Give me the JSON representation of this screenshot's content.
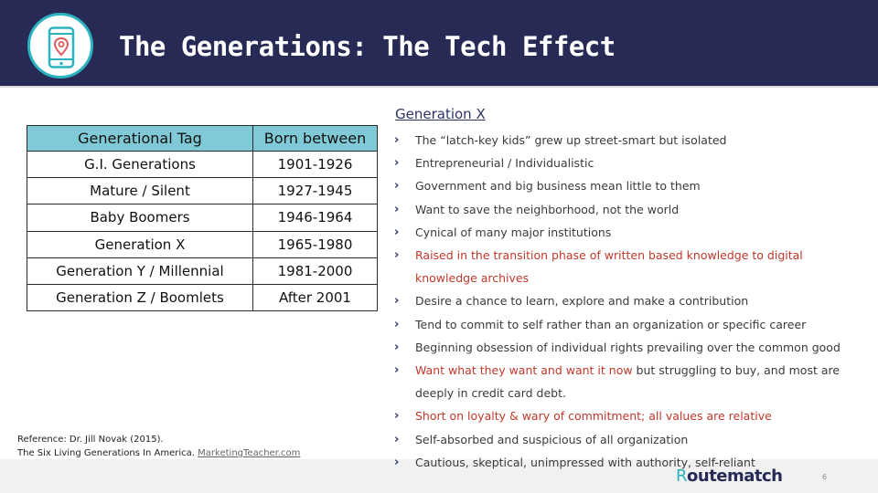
{
  "header": {
    "title": "The Generations: The Tech Effect",
    "accent_color": "#2bb3c0",
    "background_color": "#262a55",
    "logo_icon": "phone-location-pin-icon"
  },
  "table": {
    "header": {
      "tag": "Generational Tag",
      "born": "Born between"
    },
    "rows": [
      {
        "tag": "G.I. Generations",
        "born": "1901-1926"
      },
      {
        "tag": "Mature / Silent",
        "born": "1927-1945"
      },
      {
        "tag": "Baby Boomers",
        "born": "1946-1964"
      },
      {
        "tag": "Generation X",
        "born": "1965-1980"
      },
      {
        "tag": "Generation Y / Millennial",
        "born": "1981-2000"
      },
      {
        "tag": "Generation Z / Boomlets",
        "born": "After 2001"
      }
    ]
  },
  "genx": {
    "heading": "Generation X",
    "bullets": [
      {
        "text": "The “latch-key kids” grew up street-smart but isolated"
      },
      {
        "text": "Entrepreneurial / Individualistic"
      },
      {
        "text": "Government and big business mean little to them"
      },
      {
        "text": "Want to save the neighborhood, not the world"
      },
      {
        "text": "Cynical of many major institutions"
      },
      {
        "text": "Raised in the transition phase of written based knowledge to digital knowledge archives",
        "highlight": "red"
      },
      {
        "text": "Desire a chance to learn, explore and make a contribution"
      },
      {
        "text": "Tend to commit to self rather than an organization or specific career"
      },
      {
        "text": "Beginning obsession of individual rights prevailing over the common good"
      },
      {
        "text_red": "Want what they want and want it now",
        "text_rest": " but struggling to buy, and most are deeply in credit card debt."
      },
      {
        "text": "Short on loyalty & wary of commitment; all values are relative",
        "highlight": "red"
      },
      {
        "text": "Self-absorbed and suspicious of all organization"
      },
      {
        "text": "Cautious, skeptical, unimpressed with authority, self-reliant"
      }
    ]
  },
  "reference": {
    "line1": "Reference: Dr. Jill Novak (2015).",
    "line2": "The Six Living Generations In America.",
    "link": "MarketingTeacher.com"
  },
  "footer": {
    "brand_first": "R",
    "brand_rest": "outematch",
    "page_number": "6"
  }
}
